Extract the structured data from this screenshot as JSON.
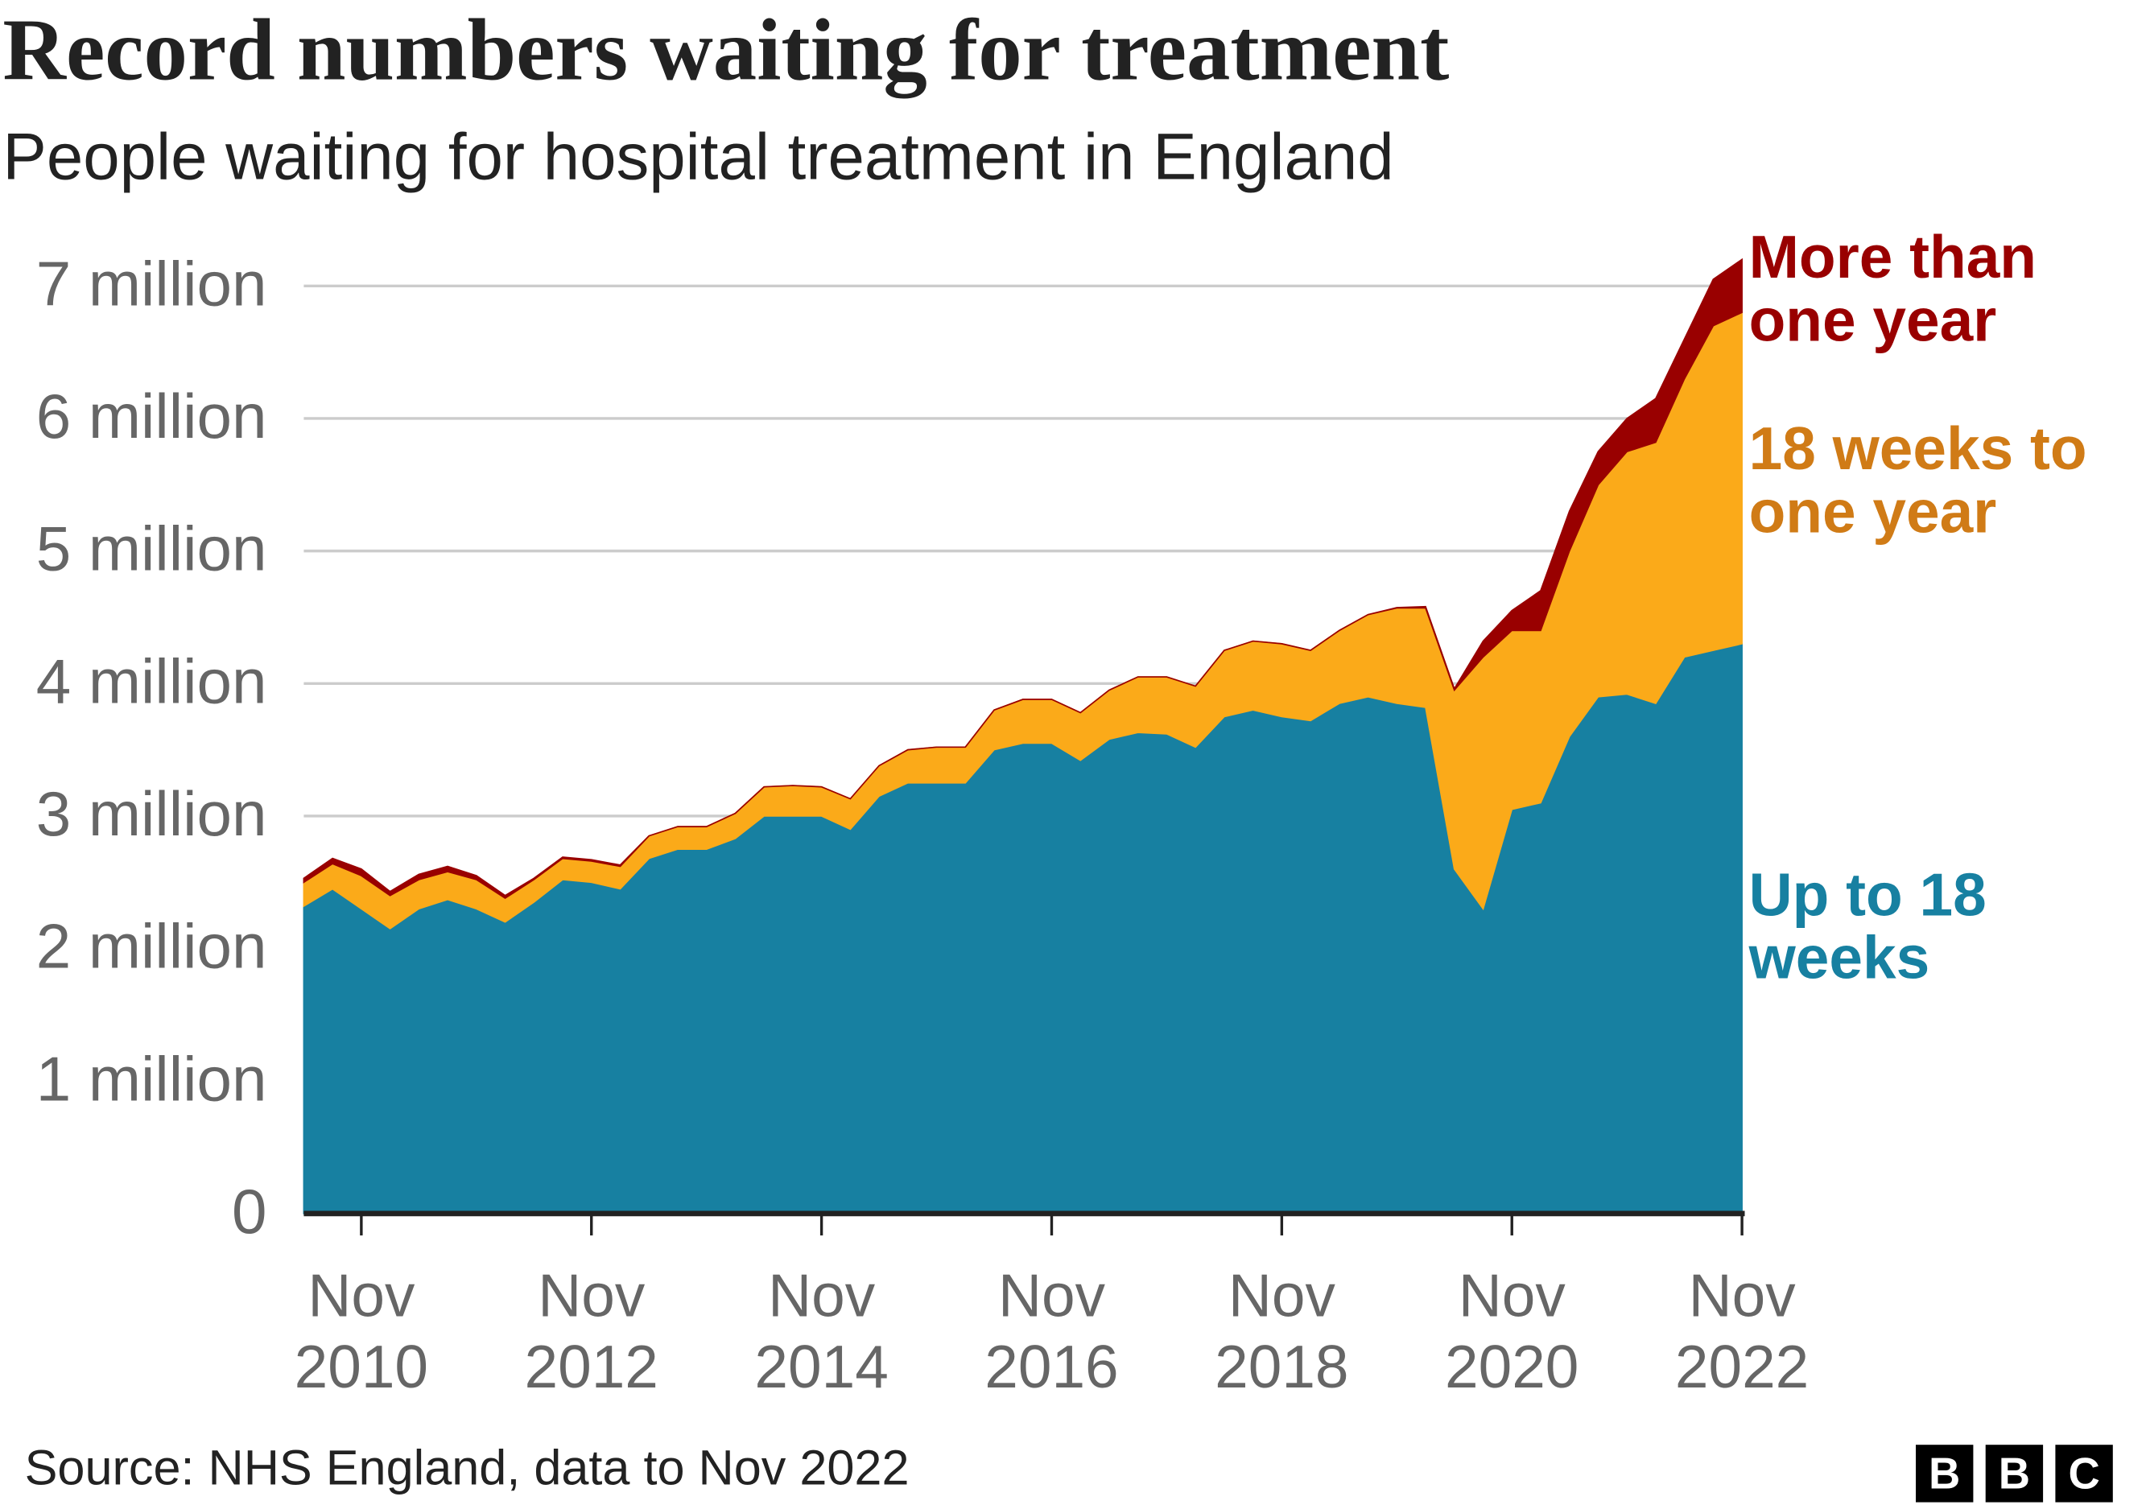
{
  "chart_data": {
    "type": "stacked_area",
    "title": "Record numbers waiting for treatment",
    "subtitle": "People waiting for hospital treatment in England",
    "source": "Source: NHS England, data to Nov 2022",
    "logo": [
      "B",
      "B",
      "C"
    ],
    "categories": [
      null,
      null,
      "Nov 2010",
      null,
      null,
      null,
      null,
      null,
      null,
      null,
      "Nov 2012",
      null,
      null,
      null,
      null,
      null,
      null,
      null,
      "Nov 2014",
      null,
      null,
      null,
      null,
      null,
      null,
      null,
      "Nov 2016",
      null,
      null,
      null,
      null,
      null,
      null,
      null,
      "Nov 2018",
      null,
      null,
      null,
      null,
      null,
      null,
      null,
      "Nov 2020",
      null,
      null,
      null,
      null,
      null,
      null,
      null,
      "Nov 2022"
    ],
    "series": [
      {
        "name": "Up to 18 weeks",
        "color": "#1780a1",
        "values": [
          2.32,
          2.45,
          2.3,
          2.15,
          2.3,
          2.37,
          2.3,
          2.2,
          2.35,
          2.52,
          2.5,
          2.45,
          2.68,
          2.75,
          2.75,
          2.83,
          3.0,
          3.0,
          3.0,
          2.9,
          3.15,
          3.25,
          3.25,
          3.25,
          3.5,
          3.55,
          3.55,
          3.42,
          3.58,
          3.63,
          3.62,
          3.52,
          3.75,
          3.8,
          3.75,
          3.72,
          3.85,
          3.9,
          3.85,
          3.82,
          2.6,
          2.3,
          3.05,
          3.1,
          3.6,
          3.9,
          3.92,
          3.85,
          4.2,
          4.25,
          4.3
        ]
      },
      {
        "name": "18 weeks to one year",
        "color": "#fbaa19",
        "label_color": "#d07b16",
        "values": [
          0.18,
          0.19,
          0.25,
          0.25,
          0.22,
          0.21,
          0.22,
          0.18,
          0.17,
          0.16,
          0.16,
          0.17,
          0.17,
          0.17,
          0.17,
          0.19,
          0.22,
          0.23,
          0.22,
          0.23,
          0.23,
          0.25,
          0.27,
          0.27,
          0.3,
          0.33,
          0.33,
          0.36,
          0.37,
          0.42,
          0.43,
          0.46,
          0.5,
          0.52,
          0.55,
          0.53,
          0.55,
          0.62,
          0.72,
          0.75,
          1.35,
          1.9,
          1.35,
          1.3,
          1.4,
          1.6,
          1.83,
          1.97,
          2.1,
          2.45,
          2.5
        ]
      },
      {
        "name": "More than one year",
        "color": "#990000",
        "values": [
          0.03,
          0.04,
          0.05,
          0.03,
          0.04,
          0.04,
          0.03,
          0.02,
          0.01,
          0.01,
          0.01,
          0.01,
          0,
          0,
          0,
          0,
          0,
          0,
          0,
          0,
          0,
          0,
          0,
          0,
          0,
          0,
          0,
          0,
          0,
          0,
          0,
          0,
          0,
          0,
          0,
          0,
          0,
          0,
          0.003,
          0.01,
          0.01,
          0.12,
          0.15,
          0.3,
          0.3,
          0.25,
          0.25,
          0.33,
          0.3,
          0.35,
          0.4
        ]
      }
    ],
    "ylim": [
      0,
      7
    ],
    "yticks": [
      0,
      {
        "value": 1,
        "label": "1 million"
      },
      {
        "value": 2,
        "label": "2 million"
      },
      {
        "value": 3,
        "label": "3 million"
      },
      {
        "value": 4,
        "label": "4 million"
      },
      {
        "value": 5,
        "label": "5 million"
      },
      {
        "value": 6,
        "label": "6 million"
      },
      {
        "value": 7,
        "label": "7 million"
      }
    ],
    "grid": true
  }
}
